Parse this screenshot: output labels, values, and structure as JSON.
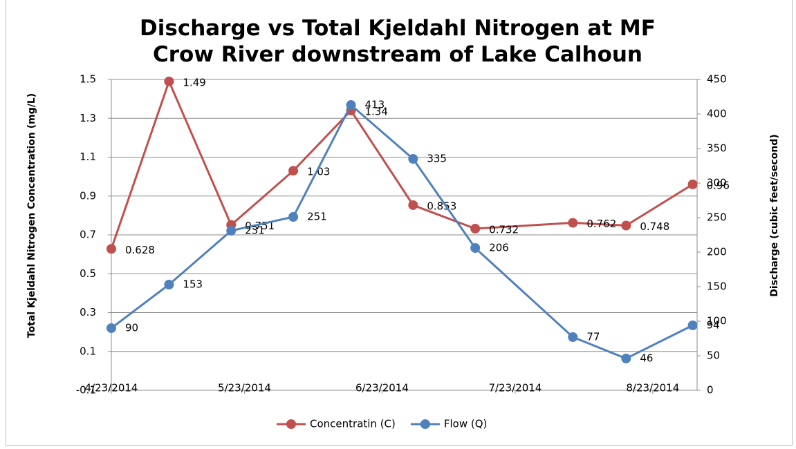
{
  "chart_data": {
    "type": "line",
    "title": "Discharge vs Total Kjeldahl Nitrogen at MF Crow River downstream of Lake Calhoun",
    "y_label": "Total Kjeldahl Nitrogen  Concentration (mg/L)",
    "y2_label": "Discharge (cubic feet/second)",
    "x": [
      "4/23/2014",
      "5/6/2014",
      "5/20/2014",
      "6/3/2014",
      "6/16/2014",
      "6/30/2014",
      "7/14/2014",
      "8/5/2014",
      "8/17/2014",
      "9/1/2014"
    ],
    "xlim": [
      "4/23/2014",
      "9/2/2014"
    ],
    "xticks": [
      "4/23/2014",
      "5/23/2014",
      "6/23/2014",
      "7/23/2014",
      "8/23/2014"
    ],
    "ylim": [
      -0.1,
      1.5
    ],
    "yticks": [
      -0.1,
      0.1,
      0.3,
      0.5,
      0.7,
      0.9,
      1.1,
      1.3,
      1.5
    ],
    "y2lim": [
      0,
      450
    ],
    "y2ticks": [
      0,
      50,
      100,
      150,
      200,
      250,
      300,
      350,
      400,
      450
    ],
    "grid": true,
    "legend": "bottom",
    "series": [
      {
        "name": "Concentratin (C)",
        "color": "#c0504d",
        "values": [
          0.628,
          1.49,
          0.751,
          1.03,
          1.34,
          0.853,
          0.732,
          0.762,
          0.748,
          0.96
        ]
      },
      {
        "name": "Flow (Q)",
        "color": "#4f81bd",
        "axis": "y2",
        "values": [
          90,
          153,
          231,
          251,
          413,
          335,
          206,
          77,
          46,
          94
        ]
      }
    ]
  }
}
